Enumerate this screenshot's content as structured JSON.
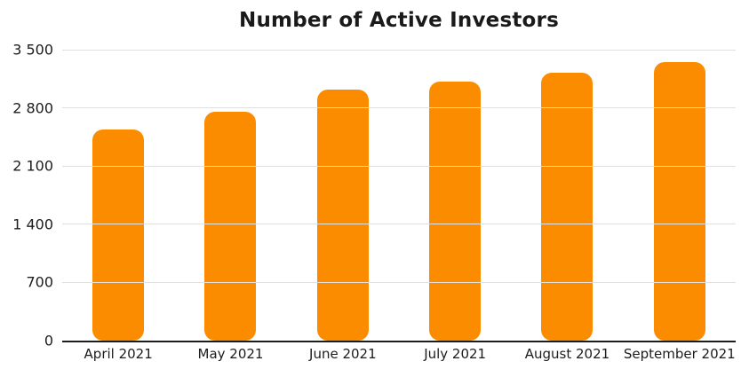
{
  "title": "Number of Active Investors",
  "colors": {
    "bar": "#fb8c00",
    "grid": "#e0e0e0",
    "axis": "#1c1c1c",
    "text": "#1c1c1c",
    "background": "#ffffff"
  },
  "chart_data": {
    "type": "bar",
    "title": "Number of Active Investors",
    "categories": [
      "April 2021",
      "May 2021",
      "June 2021",
      "July 2021",
      "August 2021",
      "September 2021"
    ],
    "values": [
      2540,
      2750,
      3020,
      3120,
      3220,
      3350
    ],
    "series_color": "#fb8c00",
    "xlabel": "",
    "ylabel": "",
    "ylim": [
      0,
      3500
    ],
    "yticks": [
      0,
      700,
      1400,
      2100,
      2800,
      3500
    ],
    "ytick_labels": [
      "0",
      "700",
      "1 400",
      "2 100",
      "2 800",
      "3 500"
    ],
    "grid": "horizontal",
    "legend": "none",
    "bar_corner_radius_px": 12
  }
}
